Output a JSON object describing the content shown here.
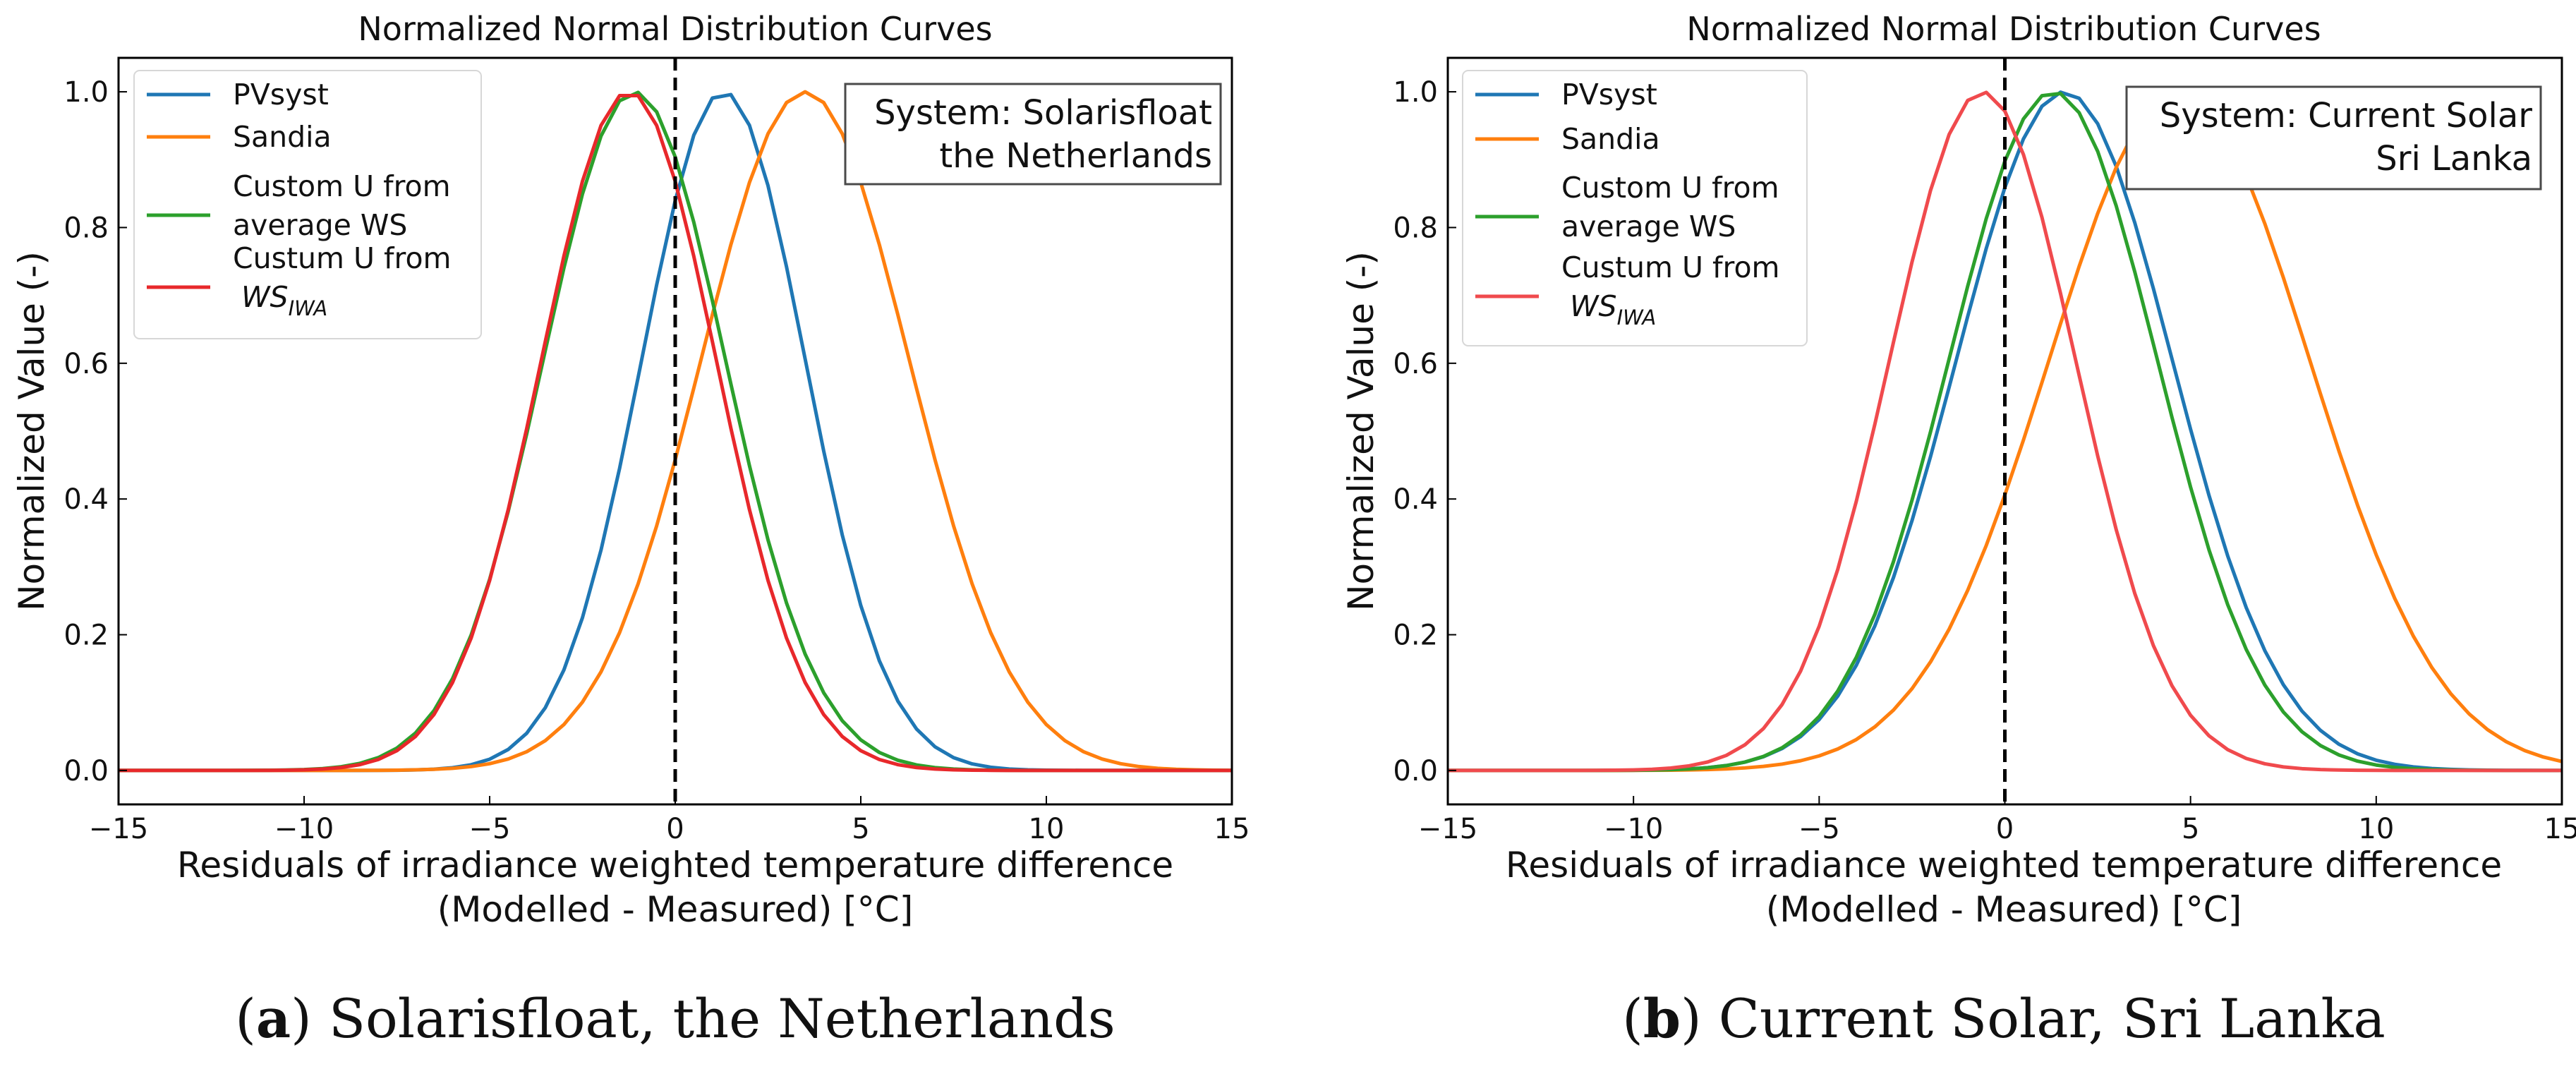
{
  "chart_data": [
    {
      "type": "line",
      "title": "Normalized Normal Distribution Curves",
      "xlabel_line1": "Residuals of irradiance weighted temperature difference",
      "xlabel_line2": "(Modelled - Measured) [°C]",
      "ylabel": "Normalized Value (-)",
      "xlim": [
        -15,
        15
      ],
      "ylim": [
        -0.05,
        1.05
      ],
      "xticks": [
        -15,
        -10,
        -5,
        0,
        5,
        10,
        15
      ],
      "xtick_labels": [
        "−15",
        "−10",
        "−5",
        "0",
        "5",
        "10",
        "15"
      ],
      "yticks": [
        0.0,
        0.2,
        0.4,
        0.6,
        0.8,
        1.0
      ],
      "ytick_labels": [
        "0.0",
        "0.2",
        "0.4",
        "0.6",
        "0.8",
        "1.0"
      ],
      "zero_line_x": 0,
      "system_box": {
        "line1": "System: Solarisfloat",
        "line2": "the Netherlands"
      },
      "caption": {
        "letter": "a",
        "text": "Solarisfloat, the Netherlands"
      },
      "legend": [
        {
          "line1": "PVsyst",
          "line2": ""
        },
        {
          "line1": "Sandia",
          "line2": ""
        },
        {
          "line1": "Custom U from",
          "line2": " average WS"
        },
        {
          "line1": "Custum U from",
          "line2_main": "WS",
          "line2_sub": "IWA"
        }
      ],
      "series": [
        {
          "name": "PVsyst",
          "color": "#1f77b4",
          "mean": 1.3,
          "sd": 2.2
        },
        {
          "name": "Sandia",
          "color": "#ff7f0e",
          "mean": 3.5,
          "sd": 2.8
        },
        {
          "name": "Custom U from average WS",
          "color": "#2ca02c",
          "mean": -1.1,
          "sd": 2.45
        },
        {
          "name": "Custum U from WS_IWA",
          "color": "#e8282b",
          "mean": -1.25,
          "sd": 2.35
        }
      ]
    },
    {
      "type": "line",
      "title": "Normalized Normal Distribution Curves",
      "xlabel_line1": "Residuals of irradiance weighted temperature difference",
      "xlabel_line2": "(Modelled - Measured) [°C]",
      "ylabel": "Normalized Value (-)",
      "xlim": [
        -15,
        15
      ],
      "ylim": [
        -0.05,
        1.05
      ],
      "xticks": [
        -15,
        -10,
        -5,
        0,
        5,
        10,
        15
      ],
      "xtick_labels": [
        "−15",
        "−10",
        "−5",
        "0",
        "5",
        "10",
        "15"
      ],
      "yticks": [
        0.0,
        0.2,
        0.4,
        0.6,
        0.8,
        1.0
      ],
      "ytick_labels": [
        "0.0",
        "0.2",
        "0.4",
        "0.6",
        "0.8",
        "1.0"
      ],
      "zero_line_x": 0,
      "system_box": {
        "line1": "System: Current Solar",
        "line2": "Sri Lanka"
      },
      "caption": {
        "letter": "b",
        "text": "Current Solar, Sri Lanka"
      },
      "legend": [
        {
          "line1": "PVsyst",
          "line2": ""
        },
        {
          "line1": "Sandia",
          "line2": ""
        },
        {
          "line1": "Custom U from",
          "line2": " average WS"
        },
        {
          "line1": "Custum U from",
          "line2_main": "WS",
          "line2_sub": "IWA"
        }
      ],
      "series": [
        {
          "name": "PVsyst",
          "color": "#1f77b4",
          "mean": 1.6,
          "sd": 2.9
        },
        {
          "name": "Sandia",
          "color": "#ff7f0e",
          "mean": 4.7,
          "sd": 3.5
        },
        {
          "name": "Custom U from average WS",
          "color": "#2ca02c",
          "mean": 1.3,
          "sd": 2.8
        },
        {
          "name": "Custum U from WS_IWA",
          "color": "#f04a4d",
          "mean": -0.6,
          "sd": 2.5
        }
      ]
    }
  ]
}
